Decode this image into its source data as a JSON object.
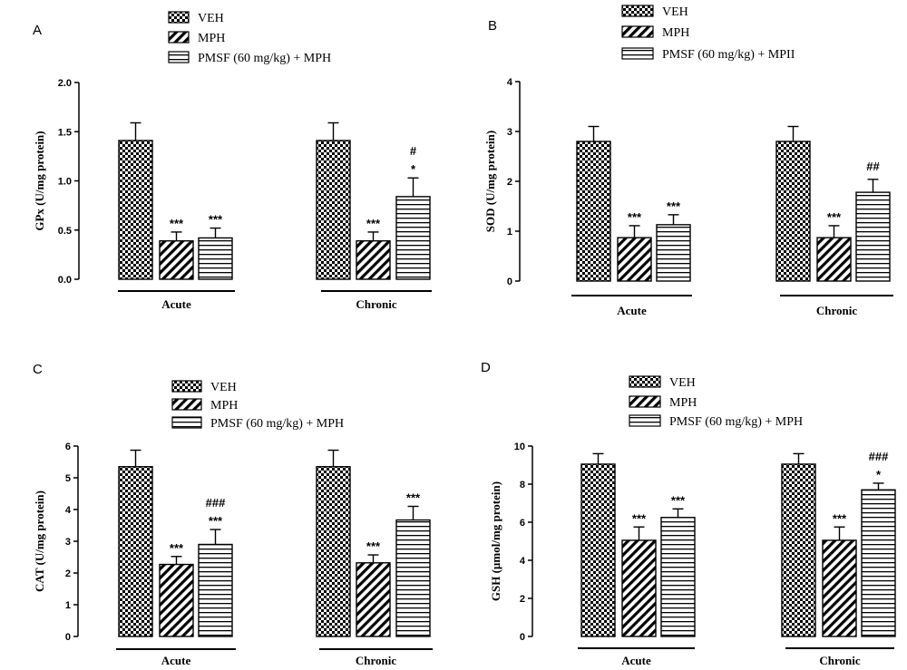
{
  "legend": {
    "series": [
      "VEH",
      "MPH",
      "PMSF (60 mg/kg) + MPH"
    ],
    "panel_b_series": [
      "VEH",
      "MPH",
      "PMSF (60 mg/kg) + MPII"
    ]
  },
  "chart_data": [
    {
      "type": "bar",
      "panel": "A",
      "ylabel": "GPx (U/mg protein)",
      "ylim": [
        0,
        2.0
      ],
      "yticks": [
        "0.0",
        "0.5",
        "1.0",
        "1.5",
        "2.0"
      ],
      "categories": [
        "Acute",
        "Chronic"
      ],
      "series": [
        {
          "name": "VEH",
          "values": [
            1.41,
            1.41
          ],
          "errors": [
            0.18,
            0.18
          ]
        },
        {
          "name": "MPH",
          "values": [
            0.39,
            0.39
          ],
          "errors": [
            0.09,
            0.09
          ]
        },
        {
          "name": "PMSF (60 mg/kg) + MPH",
          "values": [
            0.42,
            0.84
          ],
          "errors": [
            0.1,
            0.19
          ]
        }
      ],
      "annotations": [
        [
          "",
          "***",
          "***"
        ],
        [
          "",
          "***",
          "#\n*"
        ]
      ]
    },
    {
      "type": "bar",
      "panel": "B",
      "ylabel": "SOD (U/mg protein)",
      "ylim": [
        0,
        4
      ],
      "yticks": [
        "0",
        "1",
        "2",
        "3",
        "4"
      ],
      "categories": [
        "Acute",
        "Chronic"
      ],
      "series": [
        {
          "name": "VEH",
          "values": [
            2.8,
            2.8
          ],
          "errors": [
            0.3,
            0.3
          ]
        },
        {
          "name": "MPH",
          "values": [
            0.87,
            0.87
          ],
          "errors": [
            0.24,
            0.24
          ]
        },
        {
          "name": "PMSF (60 mg/kg) + MPII",
          "values": [
            1.13,
            1.78
          ],
          "errors": [
            0.2,
            0.26
          ]
        }
      ],
      "annotations": [
        [
          "",
          "***",
          "***"
        ],
        [
          "",
          "***",
          "##"
        ]
      ]
    },
    {
      "type": "bar",
      "panel": "C",
      "ylabel": "CAT (U/mg protein)",
      "ylim": [
        0,
        6
      ],
      "yticks": [
        "0",
        "1",
        "2",
        "3",
        "4",
        "5",
        "6"
      ],
      "categories": [
        "Acute",
        "Chronic"
      ],
      "series": [
        {
          "name": "VEH",
          "values": [
            5.35,
            5.35
          ],
          "errors": [
            0.52,
            0.52
          ]
        },
        {
          "name": "MPH",
          "values": [
            2.27,
            2.32
          ],
          "errors": [
            0.25,
            0.25
          ]
        },
        {
          "name": "PMSF (60 mg/kg) + MPH",
          "values": [
            2.9,
            3.67
          ],
          "errors": [
            0.47,
            0.43
          ]
        }
      ],
      "annotations": [
        [
          "",
          "***",
          "###\n***"
        ],
        [
          "",
          "***",
          "***"
        ]
      ]
    },
    {
      "type": "bar",
      "panel": "D",
      "ylabel": "GSH (µmol/mg protein)",
      "ylim": [
        0,
        10
      ],
      "yticks": [
        "0",
        "2",
        "4",
        "6",
        "8",
        "10"
      ],
      "categories": [
        "Acute",
        "Chronic"
      ],
      "series": [
        {
          "name": "VEH",
          "values": [
            9.05,
            9.05
          ],
          "errors": [
            0.55,
            0.55
          ]
        },
        {
          "name": "MPH",
          "values": [
            5.05,
            5.05
          ],
          "errors": [
            0.7,
            0.7
          ]
        },
        {
          "name": "PMSF (60 mg/kg) + MPH",
          "values": [
            6.25,
            7.7
          ],
          "errors": [
            0.45,
            0.35
          ]
        }
      ],
      "annotations": [
        [
          "",
          "***",
          "***"
        ],
        [
          "",
          "***",
          "###\n*"
        ]
      ]
    }
  ]
}
